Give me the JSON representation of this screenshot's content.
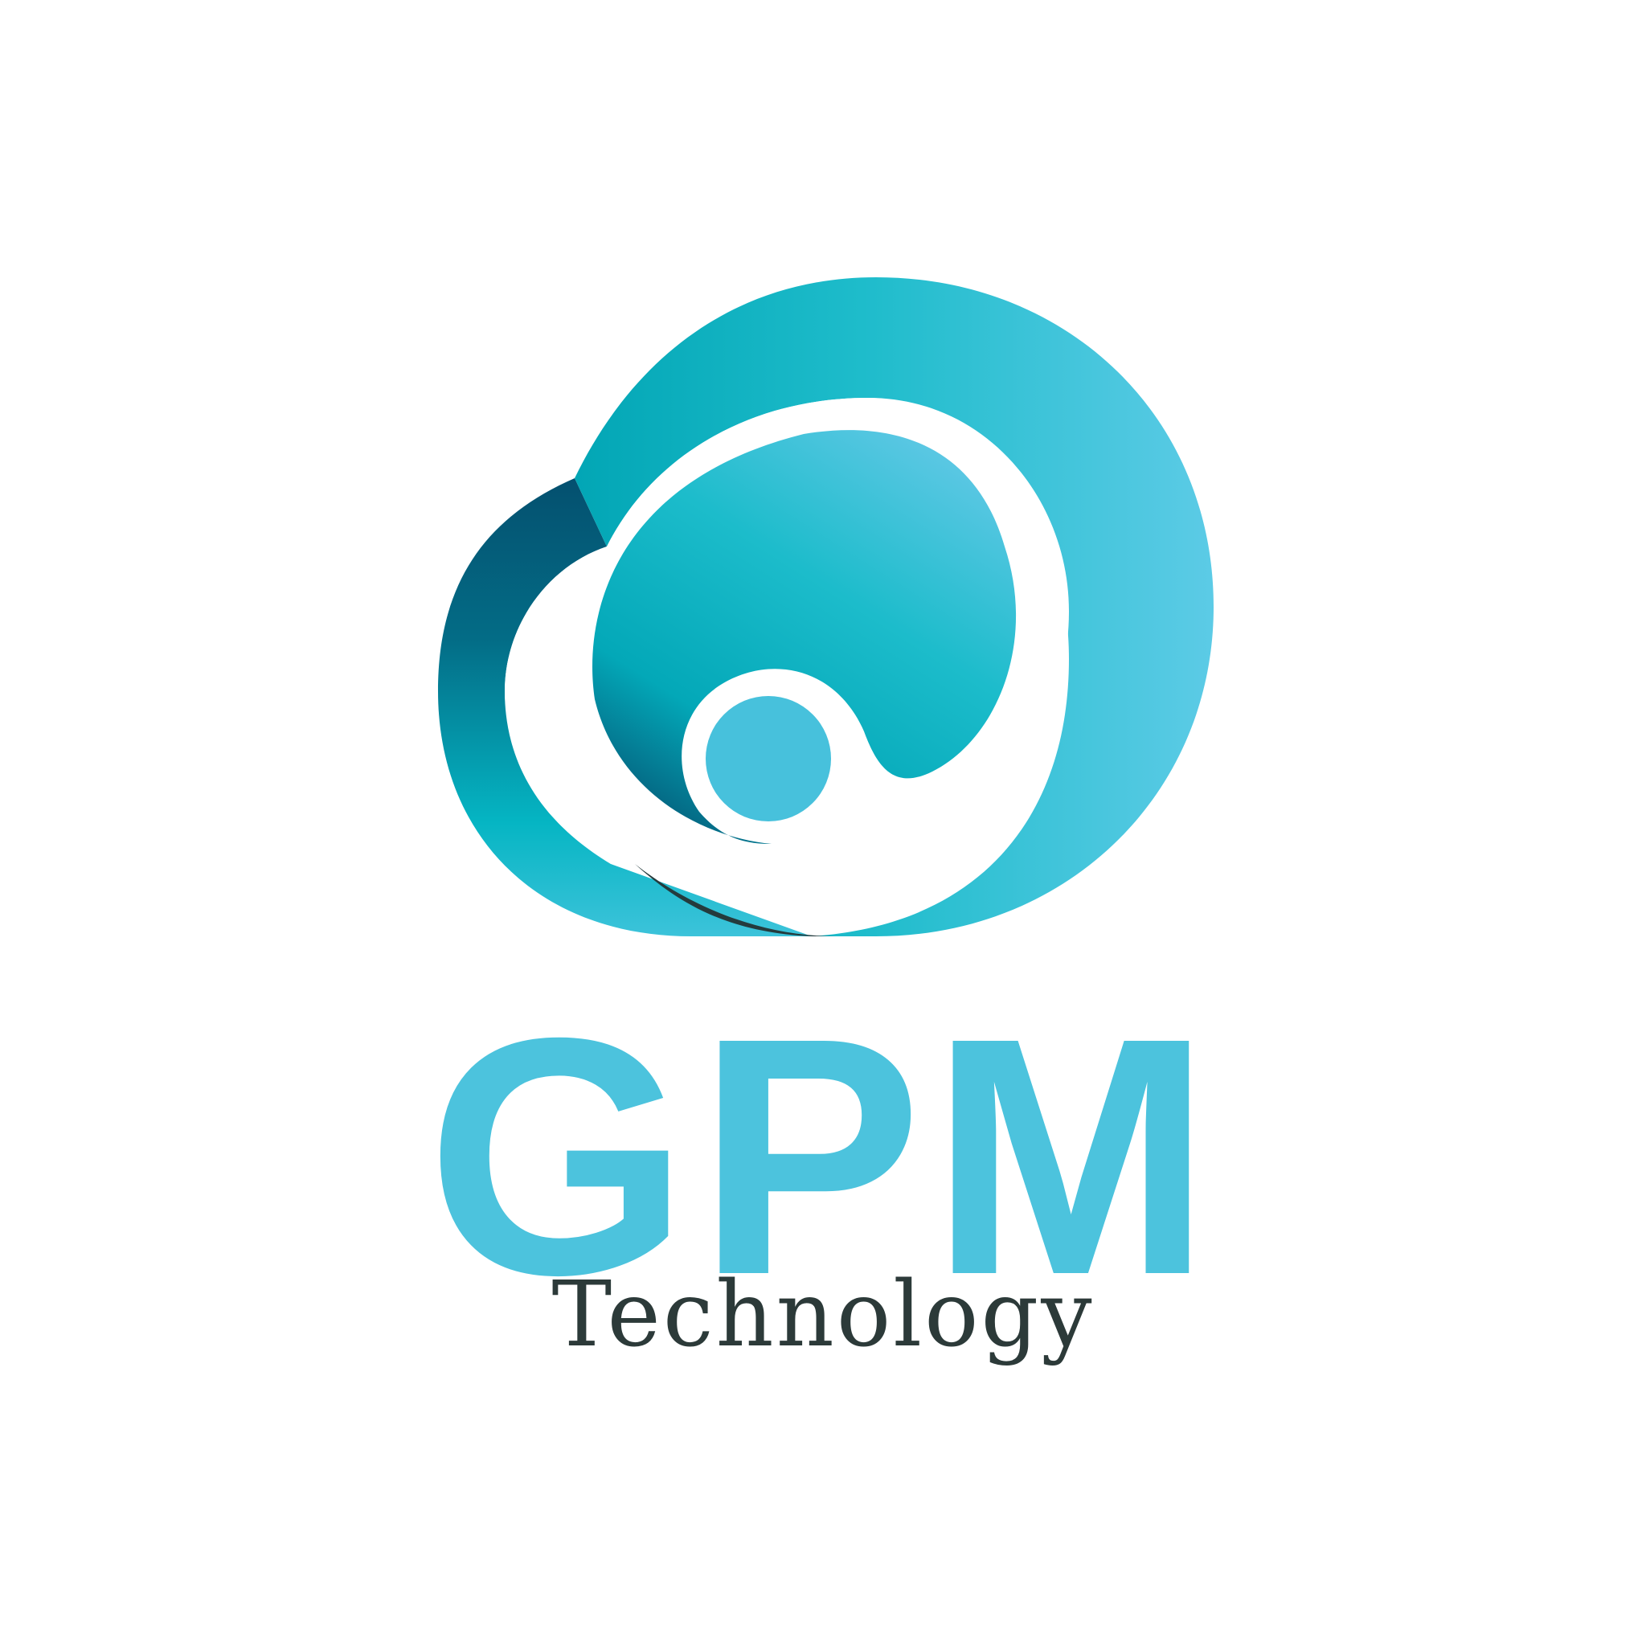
{
  "brand": {
    "name": "GPM",
    "tagline": "Technology"
  },
  "icons": {
    "mark": "cloud-swirl-logo-icon"
  },
  "colors": {
    "background": "#ffffff",
    "wordmark": "#4cc3dd",
    "tagline": "#2c3a39",
    "teal_dark": "#054e6e",
    "teal_mid": "#04b4c1",
    "teal_light": "#5bcbe6",
    "dot": "#47c1dc",
    "shadow": "#243b3d"
  }
}
